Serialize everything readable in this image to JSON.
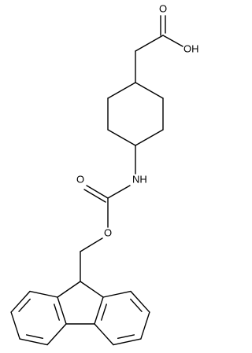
{
  "atoms": [
    {
      "label": "O"
    },
    {
      "label": "OH"
    },
    {
      "label": "NH"
    },
    {
      "label": "O"
    },
    {
      "label": "O"
    }
  ]
}
